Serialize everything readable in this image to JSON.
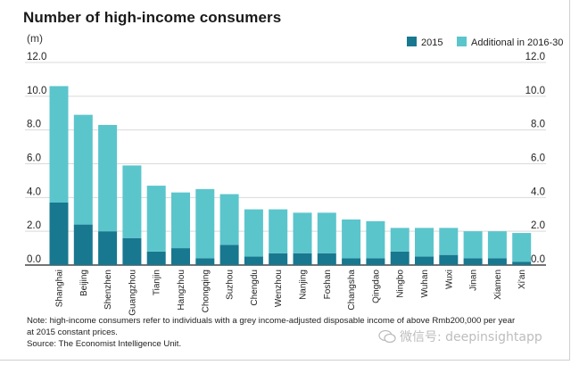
{
  "chart_data": {
    "type": "bar",
    "stacked": true,
    "title": "Number of high-income consumers",
    "unit": "(m)",
    "categories": [
      "Shanghai",
      "Beijing",
      "Shenzhen",
      "Guangzhou",
      "Tianjin",
      "Hangzhou",
      "Chongqing",
      "Suzhou",
      "Chengdu",
      "Wenzhou",
      "Nanjing",
      "Foshan",
      "Changsha",
      "Qingdao",
      "Ningbo",
      "Wuhan",
      "Wuxi",
      "Jinan",
      "Xiamen",
      "Xi'an"
    ],
    "series": [
      {
        "name": "2015",
        "color": "#17788f",
        "values": [
          3.7,
          2.4,
          2.0,
          1.6,
          0.8,
          1.0,
          0.4,
          1.2,
          0.5,
          0.7,
          0.7,
          0.7,
          0.4,
          0.4,
          0.8,
          0.5,
          0.6,
          0.4,
          0.4,
          0.2
        ]
      },
      {
        "name": "Additional in 2016-30",
        "color": "#5bc5cc",
        "values": [
          6.9,
          6.5,
          6.3,
          4.3,
          3.9,
          3.3,
          4.1,
          3.0,
          2.8,
          2.6,
          2.4,
          2.4,
          2.3,
          2.2,
          1.4,
          1.7,
          1.6,
          1.6,
          1.6,
          1.7
        ]
      }
    ],
    "ylim": [
      0,
      12
    ],
    "yticks": [
      "0.0",
      "2.0",
      "4.0",
      "6.0",
      "8.0",
      "10.0",
      "12.0"
    ],
    "grid": true,
    "legend_position": "top-right"
  },
  "footer": {
    "note_line1": "Note: high-income consumers refer to individuals with a grey income-adjusted disposable income of above Rmb200,000 per year",
    "note_line2": "at 2015 constant prices.",
    "source": "Source: The Economist Intelligence Unit."
  },
  "watermark": {
    "text": "微信号: deepinsightapp"
  },
  "colors": {
    "grid": "#d9d9d9",
    "baseline": "#222222"
  }
}
